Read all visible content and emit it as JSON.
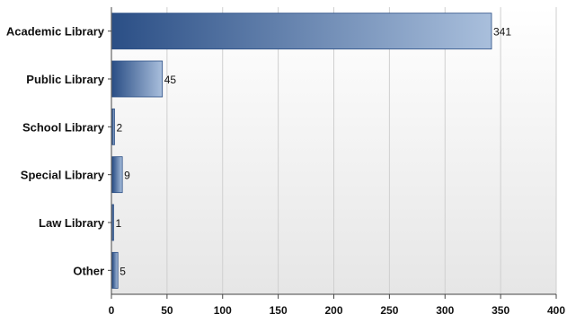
{
  "chart_data": {
    "type": "bar",
    "orientation": "horizontal",
    "categories": [
      "Academic Library",
      "Public Library",
      "School Library",
      "Special Library",
      "Law Library",
      "Other"
    ],
    "values": [
      341,
      45,
      2,
      9,
      1,
      5
    ],
    "data_labels": [
      "341",
      "45",
      "2",
      "9",
      "1",
      "5"
    ],
    "title": "",
    "xlabel": "",
    "ylabel": "",
    "xlim": [
      0,
      400
    ],
    "x_ticks": [
      0,
      50,
      100,
      150,
      200,
      250,
      300,
      350,
      400
    ],
    "x_tick_labels": [
      "0",
      "50",
      "100",
      "150",
      "200",
      "250",
      "300",
      "350",
      "400"
    ],
    "grid": "vertical",
    "legend": "none",
    "colors": {
      "bar_dark": "#2b4f86",
      "bar_light": "#a9bfdc",
      "plot_bg_top": "#ffffff",
      "plot_bg_bottom": "#e6e6e6",
      "grid": "#cfcfcf",
      "axis": "#444444"
    }
  }
}
